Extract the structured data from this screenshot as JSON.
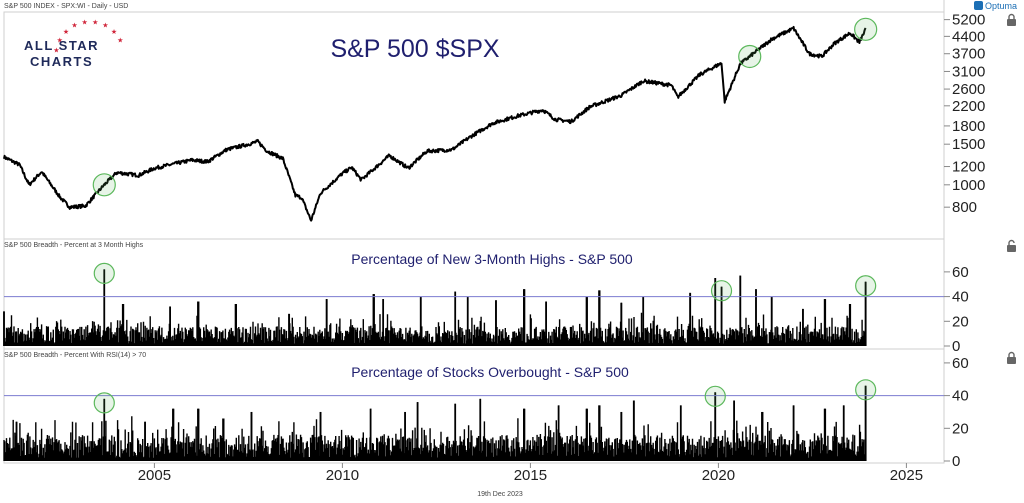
{
  "header": {
    "series_info": "S&P 500 INDEX - SPX:WI - Daily - USD",
    "brand": "Optuma",
    "footer_date": "19th Dec 2023"
  },
  "logo": {
    "line1": "ALL STAR",
    "line2": "CHARTS"
  },
  "colors": {
    "line": "#000000",
    "highlight_circle": "#5cb85c",
    "threshold": "#7b7bd0",
    "title": "#1f1f6e",
    "logo_star": "#d0253a"
  },
  "chart_data": [
    {
      "type": "line",
      "title": "S&P 500 $SPX",
      "y_scale": "log",
      "y_ticks": [
        800,
        1000,
        1200,
        1500,
        1800,
        2200,
        2600,
        3100,
        3700,
        4400,
        5200
      ],
      "ylim": [
        600,
        5500
      ],
      "x_ticks": [
        "2005",
        "2010",
        "2015",
        "2020",
        "2025"
      ],
      "xlim": [
        "2001-01",
        "2026-01"
      ],
      "highlights": [
        "2003-09",
        "2020-11",
        "2023-12"
      ],
      "series": [
        {
          "x": [
            "2001-01",
            "2001-06",
            "2001-09",
            "2002-01",
            "2002-07",
            "2002-10",
            "2003-03",
            "2003-09",
            "2004-01",
            "2004-08",
            "2005-01",
            "2005-07",
            "2006-01",
            "2006-06",
            "2006-12",
            "2007-07",
            "2007-10",
            "2008-01",
            "2008-06",
            "2008-10",
            "2008-12",
            "2009-03",
            "2009-06",
            "2010-01",
            "2010-04",
            "2010-07",
            "2011-04",
            "2011-10",
            "2012-04",
            "2012-12",
            "2013-06",
            "2014-01",
            "2014-09",
            "2015-05",
            "2015-09",
            "2016-02",
            "2016-08",
            "2017-06",
            "2018-01",
            "2018-10",
            "2018-12",
            "2019-07",
            "2020-02",
            "2020-03",
            "2020-08",
            "2020-11",
            "2021-06",
            "2022-01",
            "2022-06",
            "2022-10",
            "2023-02",
            "2023-07",
            "2023-10",
            "2023-12"
          ],
          "values": [
            1320,
            1220,
            1000,
            1140,
            880,
            800,
            810,
            1000,
            1130,
            1100,
            1180,
            1230,
            1280,
            1260,
            1420,
            1500,
            1540,
            1400,
            1300,
            900,
            880,
            700,
            920,
            1120,
            1190,
            1050,
            1340,
            1180,
            1400,
            1420,
            1620,
            1850,
            1990,
            2110,
            1920,
            1880,
            2180,
            2440,
            2820,
            2700,
            2400,
            3000,
            3370,
            2300,
            3350,
            3600,
            4280,
            4770,
            3700,
            3600,
            4100,
            4550,
            4150,
            4720
          ]
        }
      ]
    },
    {
      "type": "bar",
      "title": "Percentage of New 3-Month Highs - S&P 500",
      "header": "S&P 500 Breadth - Percent at 3 Month Highs",
      "y_ticks": [
        0,
        20,
        40,
        60
      ],
      "ylim": [
        0,
        68
      ],
      "threshold": 40,
      "highlights": [
        "2003-09",
        "2020-02",
        "2023-12"
      ],
      "spikes": {
        "x": [
          "2001-01",
          "2003-09",
          "2004-03",
          "2005-06",
          "2006-03",
          "2007-03",
          "2008-08",
          "2009-08",
          "2010-11",
          "2011-02",
          "2012-02",
          "2013-01",
          "2013-05",
          "2014-02",
          "2014-11",
          "2015-06",
          "2016-07",
          "2016-11",
          "2017-06",
          "2018-01",
          "2019-04",
          "2019-12",
          "2020-02",
          "2020-08",
          "2021-01",
          "2021-06",
          "2022-04",
          "2022-11",
          "2023-07",
          "2023-12"
        ],
        "values": [
          28,
          62,
          34,
          32,
          36,
          34,
          26,
          38,
          42,
          38,
          40,
          44,
          40,
          37,
          46,
          36,
          40,
          45,
          35,
          40,
          43,
          55,
          48,
          57,
          46,
          40,
          30,
          38,
          34,
          52
        ]
      }
    },
    {
      "type": "bar",
      "title": "Percentage of Stocks Overbought - S&P 500",
      "header": "S&P 500 Breadth - Percent With RSI(14) > 70",
      "y_ticks": [
        0,
        20,
        40,
        60
      ],
      "ylim": [
        0,
        63
      ],
      "threshold": 40,
      "highlights": [
        "2003-09",
        "2019-12",
        "2023-12"
      ],
      "spikes": {
        "x": [
          "2001-05",
          "2003-09",
          "2004-10",
          "2005-07",
          "2006-03",
          "2006-11",
          "2007-08",
          "2009-06",
          "2010-10",
          "2011-09",
          "2012-01",
          "2013-01",
          "2013-09",
          "2014-11",
          "2015-10",
          "2016-07",
          "2016-11",
          "2017-06",
          "2017-10",
          "2019-01",
          "2019-12",
          "2020-06",
          "2021-03",
          "2022-01",
          "2022-11",
          "2023-05",
          "2023-12"
        ],
        "values": [
          24,
          38,
          24,
          32,
          32,
          26,
          30,
          30,
          32,
          30,
          36,
          35,
          38,
          32,
          34,
          32,
          34,
          30,
          37,
          34,
          42,
          37,
          30,
          34,
          32,
          34,
          46
        ]
      }
    }
  ]
}
